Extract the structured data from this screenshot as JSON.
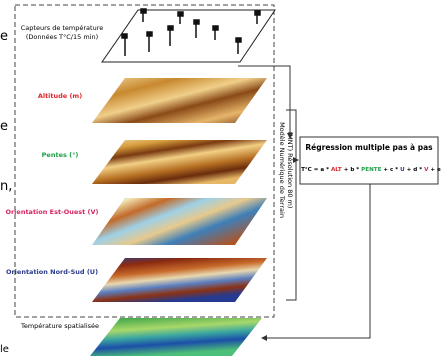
{
  "layers": [
    {
      "label": [
        "Capteurs de température",
        "(Données T°C/15 min)"
      ]
    },
    {
      "label": [
        "Altitude (m)"
      ]
    },
    {
      "label": [
        "Pentes (°)"
      ]
    },
    {
      "label": [
        "Orientation Est-Ouest (V)"
      ]
    },
    {
      "label": [
        "Orientation Nord-Sud (U)"
      ]
    }
  ],
  "mnt_label": [
    "Modèle Numérique de Terrain",
    "(MNT) Résolution 80 m)"
  ],
  "regression": {
    "title": "Régression multiple pas à pas",
    "formula": [
      "T°C = a * ",
      "ALT",
      " + b * ",
      "PENTE",
      " + c * ",
      "U",
      " + d * ",
      "V",
      " + e"
    ]
  },
  "output": {
    "label": "Température spatialisée"
  },
  "cropped_text": [
    "e",
    "n,",
    "e",
    "le"
  ]
}
